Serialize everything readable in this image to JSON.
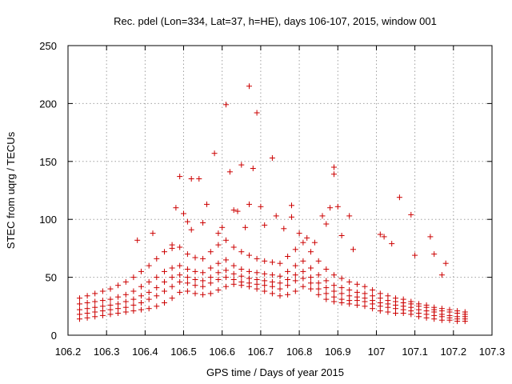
{
  "chart_data": {
    "type": "scatter",
    "title": "Rec. pdel (Lon=334, Lat=37, h=HE), days 106-107, 2015, window 001",
    "xlabel": "GPS time / Days of year 2015",
    "ylabel": "STEC from uqrg / TECUs",
    "xlim": [
      106.2,
      107.3
    ],
    "ylim": [
      0,
      250
    ],
    "x_ticks": [
      106.2,
      106.3,
      106.4,
      106.5,
      106.6,
      106.7,
      106.8,
      106.9,
      107.0,
      107.1,
      107.2,
      107.3
    ],
    "x_tick_labels": [
      "106.2",
      "106.3",
      "106.4",
      "106.5",
      "106.6",
      "106.7",
      "106.8",
      "106.9",
      "107",
      "107.1",
      "107.2",
      "107.3"
    ],
    "y_ticks": [
      0,
      50,
      100,
      150,
      200,
      250
    ],
    "y_tick_labels": [
      "0",
      "50",
      "100",
      "150",
      "200",
      "250"
    ],
    "grid": true,
    "marker": "+",
    "color": "#cc0000",
    "series": [
      {
        "name": "STEC",
        "points": [
          [
            106.23,
            14
          ],
          [
            106.25,
            15
          ],
          [
            106.27,
            16
          ],
          [
            106.29,
            17
          ],
          [
            106.31,
            18
          ],
          [
            106.33,
            19
          ],
          [
            106.35,
            20
          ],
          [
            106.37,
            21
          ],
          [
            106.39,
            22
          ],
          [
            106.41,
            23
          ],
          [
            106.43,
            25
          ],
          [
            106.45,
            28
          ],
          [
            106.47,
            32
          ],
          [
            106.49,
            37
          ],
          [
            106.51,
            38
          ],
          [
            106.53,
            36
          ],
          [
            106.55,
            35
          ],
          [
            106.57,
            36
          ],
          [
            106.59,
            39
          ],
          [
            106.61,
            42
          ],
          [
            106.63,
            44
          ],
          [
            106.65,
            43
          ],
          [
            106.67,
            42
          ],
          [
            106.69,
            40
          ],
          [
            106.71,
            38
          ],
          [
            106.73,
            36
          ],
          [
            106.75,
            34
          ],
          [
            106.77,
            35
          ],
          [
            106.79,
            38
          ],
          [
            106.81,
            42
          ],
          [
            106.83,
            40
          ],
          [
            106.85,
            35
          ],
          [
            106.87,
            31
          ],
          [
            106.89,
            29
          ],
          [
            106.91,
            28
          ],
          [
            106.93,
            27
          ],
          [
            106.95,
            26
          ],
          [
            106.97,
            25
          ],
          [
            106.99,
            23
          ],
          [
            107.01,
            21
          ],
          [
            107.03,
            20
          ],
          [
            107.05,
            19
          ],
          [
            107.07,
            19
          ],
          [
            107.09,
            18
          ],
          [
            107.11,
            16
          ],
          [
            107.13,
            15
          ],
          [
            107.15,
            14
          ],
          [
            107.17,
            13
          ],
          [
            107.19,
            13
          ],
          [
            107.21,
            12
          ],
          [
            107.23,
            12
          ],
          [
            106.23,
            18
          ],
          [
            106.25,
            19
          ],
          [
            106.27,
            20
          ],
          [
            106.29,
            21
          ],
          [
            106.31,
            22
          ],
          [
            106.33,
            23
          ],
          [
            106.35,
            24
          ],
          [
            106.37,
            26
          ],
          [
            106.39,
            28
          ],
          [
            106.41,
            31
          ],
          [
            106.43,
            34
          ],
          [
            106.45,
            38
          ],
          [
            106.47,
            42
          ],
          [
            106.49,
            46
          ],
          [
            106.51,
            45
          ],
          [
            106.53,
            43
          ],
          [
            106.55,
            42
          ],
          [
            106.57,
            45
          ],
          [
            106.59,
            48
          ],
          [
            106.61,
            50
          ],
          [
            106.63,
            48
          ],
          [
            106.65,
            46
          ],
          [
            106.67,
            45
          ],
          [
            106.69,
            44
          ],
          [
            106.71,
            43
          ],
          [
            106.73,
            42
          ],
          [
            106.75,
            40
          ],
          [
            106.77,
            43
          ],
          [
            106.79,
            47
          ],
          [
            106.81,
            49
          ],
          [
            106.83,
            45
          ],
          [
            106.85,
            40
          ],
          [
            106.87,
            36
          ],
          [
            106.89,
            33
          ],
          [
            106.91,
            31
          ],
          [
            106.93,
            30
          ],
          [
            106.95,
            30
          ],
          [
            106.97,
            29
          ],
          [
            106.99,
            27
          ],
          [
            107.01,
            25
          ],
          [
            107.03,
            24
          ],
          [
            107.05,
            23
          ],
          [
            107.07,
            22
          ],
          [
            107.09,
            21
          ],
          [
            107.11,
            19
          ],
          [
            107.13,
            18
          ],
          [
            107.15,
            17
          ],
          [
            107.17,
            16
          ],
          [
            107.19,
            15
          ],
          [
            107.21,
            14
          ],
          [
            107.23,
            14
          ],
          [
            106.23,
            22
          ],
          [
            106.25,
            23
          ],
          [
            106.27,
            24
          ],
          [
            106.29,
            25
          ],
          [
            106.31,
            26
          ],
          [
            106.33,
            27
          ],
          [
            106.35,
            29
          ],
          [
            106.37,
            31
          ],
          [
            106.39,
            34
          ],
          [
            106.41,
            37
          ],
          [
            106.43,
            41
          ],
          [
            106.45,
            46
          ],
          [
            106.47,
            50
          ],
          [
            106.49,
            52
          ],
          [
            106.51,
            50
          ],
          [
            106.53,
            48
          ],
          [
            106.55,
            47
          ],
          [
            106.57,
            50
          ],
          [
            106.59,
            54
          ],
          [
            106.61,
            56
          ],
          [
            106.63,
            53
          ],
          [
            106.65,
            51
          ],
          [
            106.67,
            49
          ],
          [
            106.69,
            48
          ],
          [
            106.71,
            47
          ],
          [
            106.73,
            46
          ],
          [
            106.75,
            45
          ],
          [
            106.77,
            48
          ],
          [
            106.79,
            52
          ],
          [
            106.81,
            55
          ],
          [
            106.83,
            50
          ],
          [
            106.85,
            45
          ],
          [
            106.87,
            41
          ],
          [
            106.89,
            38
          ],
          [
            106.91,
            36
          ],
          [
            106.93,
            34
          ],
          [
            106.95,
            33
          ],
          [
            106.97,
            32
          ],
          [
            106.99,
            30
          ],
          [
            107.01,
            28
          ],
          [
            107.03,
            27
          ],
          [
            107.05,
            26
          ],
          [
            107.07,
            25
          ],
          [
            107.09,
            24
          ],
          [
            107.11,
            22
          ],
          [
            107.13,
            21
          ],
          [
            107.15,
            20
          ],
          [
            107.17,
            18
          ],
          [
            107.19,
            17
          ],
          [
            107.21,
            16
          ],
          [
            107.23,
            16
          ],
          [
            106.23,
            27
          ],
          [
            106.25,
            28
          ],
          [
            106.27,
            29
          ],
          [
            106.29,
            30
          ],
          [
            106.31,
            31
          ],
          [
            106.33,
            33
          ],
          [
            106.35,
            35
          ],
          [
            106.37,
            38
          ],
          [
            106.39,
            42
          ],
          [
            106.41,
            46
          ],
          [
            106.43,
            50
          ],
          [
            106.45,
            55
          ],
          [
            106.47,
            58
          ],
          [
            106.49,
            60
          ],
          [
            106.51,
            57
          ],
          [
            106.53,
            55
          ],
          [
            106.55,
            54
          ],
          [
            106.57,
            58
          ],
          [
            106.59,
            62
          ],
          [
            106.61,
            65
          ],
          [
            106.63,
            60
          ],
          [
            106.65,
            57
          ],
          [
            106.67,
            55
          ],
          [
            106.69,
            54
          ],
          [
            106.71,
            53
          ],
          [
            106.73,
            52
          ],
          [
            106.75,
            51
          ],
          [
            106.77,
            55
          ],
          [
            106.79,
            60
          ],
          [
            106.81,
            64
          ],
          [
            106.83,
            58
          ],
          [
            106.85,
            52
          ],
          [
            106.87,
            47
          ],
          [
            106.89,
            43
          ],
          [
            106.91,
            41
          ],
          [
            106.93,
            39
          ],
          [
            106.95,
            37
          ],
          [
            106.97,
            36
          ],
          [
            106.99,
            34
          ],
          [
            107.01,
            32
          ],
          [
            107.03,
            30
          ],
          [
            107.05,
            29
          ],
          [
            107.07,
            28
          ],
          [
            107.09,
            27
          ],
          [
            107.11,
            25
          ],
          [
            107.13,
            24
          ],
          [
            107.15,
            22
          ],
          [
            107.17,
            21
          ],
          [
            107.19,
            20
          ],
          [
            107.21,
            19
          ],
          [
            107.23,
            18
          ],
          [
            106.23,
            32
          ],
          [
            106.25,
            34
          ],
          [
            106.27,
            36
          ],
          [
            106.29,
            38
          ],
          [
            106.31,
            40
          ],
          [
            106.33,
            43
          ],
          [
            106.35,
            46
          ],
          [
            106.37,
            50
          ],
          [
            106.39,
            55
          ],
          [
            106.41,
            60
          ],
          [
            106.43,
            66
          ],
          [
            106.45,
            72
          ],
          [
            106.47,
            75
          ],
          [
            106.49,
            76
          ],
          [
            106.51,
            70
          ],
          [
            106.53,
            67
          ],
          [
            106.55,
            66
          ],
          [
            106.57,
            72
          ],
          [
            106.59,
            78
          ],
          [
            106.61,
            82
          ],
          [
            106.63,
            76
          ],
          [
            106.65,
            72
          ],
          [
            106.67,
            69
          ],
          [
            106.69,
            66
          ],
          [
            106.71,
            64
          ],
          [
            106.73,
            63
          ],
          [
            106.75,
            62
          ],
          [
            106.77,
            68
          ],
          [
            106.79,
            74
          ],
          [
            106.81,
            80
          ],
          [
            106.83,
            72
          ],
          [
            106.85,
            64
          ],
          [
            106.87,
            57
          ],
          [
            106.89,
            52
          ],
          [
            106.91,
            49
          ],
          [
            106.93,
            46
          ],
          [
            106.95,
            44
          ],
          [
            106.97,
            42
          ],
          [
            106.99,
            39
          ],
          [
            107.01,
            36
          ],
          [
            107.03,
            34
          ],
          [
            107.05,
            32
          ],
          [
            107.07,
            31
          ],
          [
            107.09,
            29
          ],
          [
            107.11,
            27
          ],
          [
            107.13,
            26
          ],
          [
            107.15,
            24
          ],
          [
            107.17,
            23
          ],
          [
            107.19,
            22
          ],
          [
            107.21,
            21
          ],
          [
            107.23,
            20
          ],
          [
            106.38,
            82
          ],
          [
            106.42,
            88
          ],
          [
            106.47,
            78
          ],
          [
            106.48,
            110
          ],
          [
            106.49,
            137
          ],
          [
            106.5,
            105
          ],
          [
            106.51,
            98
          ],
          [
            106.52,
            91
          ],
          [
            106.52,
            135
          ],
          [
            106.54,
            135
          ],
          [
            106.55,
            97
          ],
          [
            106.56,
            113
          ],
          [
            106.58,
            157
          ],
          [
            106.59,
            88
          ],
          [
            106.6,
            93
          ],
          [
            106.61,
            199
          ],
          [
            106.62,
            141
          ],
          [
            106.63,
            108
          ],
          [
            106.64,
            107
          ],
          [
            106.65,
            147
          ],
          [
            106.66,
            93
          ],
          [
            106.67,
            215
          ],
          [
            106.67,
            113
          ],
          [
            106.68,
            144
          ],
          [
            106.69,
            192
          ],
          [
            106.7,
            111
          ],
          [
            106.71,
            95
          ],
          [
            106.73,
            153
          ],
          [
            106.74,
            103
          ],
          [
            106.76,
            92
          ],
          [
            106.78,
            112
          ],
          [
            106.78,
            102
          ],
          [
            106.8,
            88
          ],
          [
            106.82,
            84
          ],
          [
            106.84,
            80
          ],
          [
            106.86,
            103
          ],
          [
            106.87,
            96
          ],
          [
            106.88,
            110
          ],
          [
            106.89,
            145
          ],
          [
            106.89,
            139
          ],
          [
            106.9,
            111
          ],
          [
            106.91,
            86
          ],
          [
            106.93,
            103
          ],
          [
            106.94,
            74
          ],
          [
            107.01,
            87
          ],
          [
            107.02,
            85
          ],
          [
            107.04,
            79
          ],
          [
            107.06,
            119
          ],
          [
            107.09,
            104
          ],
          [
            107.1,
            69
          ],
          [
            107.14,
            85
          ],
          [
            107.15,
            70
          ],
          [
            107.17,
            52
          ],
          [
            107.18,
            62
          ]
        ]
      }
    ]
  }
}
